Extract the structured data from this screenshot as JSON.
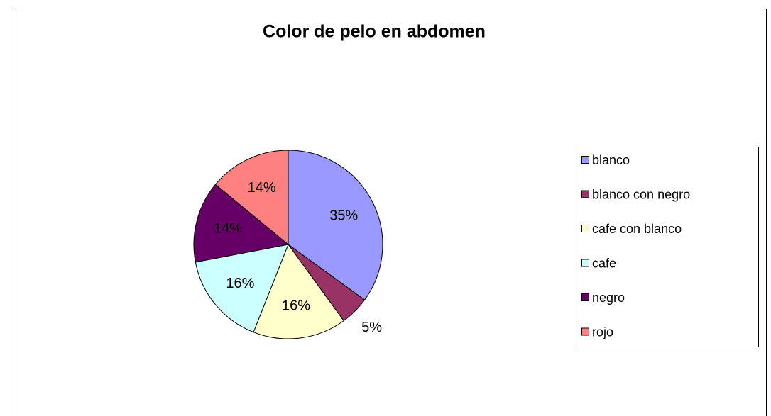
{
  "chart_data": {
    "type": "pie",
    "title": "Color de pelo en abdomen",
    "categories": [
      "blanco",
      "blanco con negro",
      "cafe con blanco",
      "cafe",
      "negro",
      "rojo"
    ],
    "values": [
      35,
      5,
      16,
      16,
      14,
      14
    ],
    "value_labels": [
      "35%",
      "5%",
      "16%",
      "16%",
      "14%",
      "14%"
    ],
    "colors": [
      "#9999ff",
      "#993366",
      "#ffffcc",
      "#ccffff",
      "#660066",
      "#ff8080"
    ],
    "legend": "right"
  }
}
